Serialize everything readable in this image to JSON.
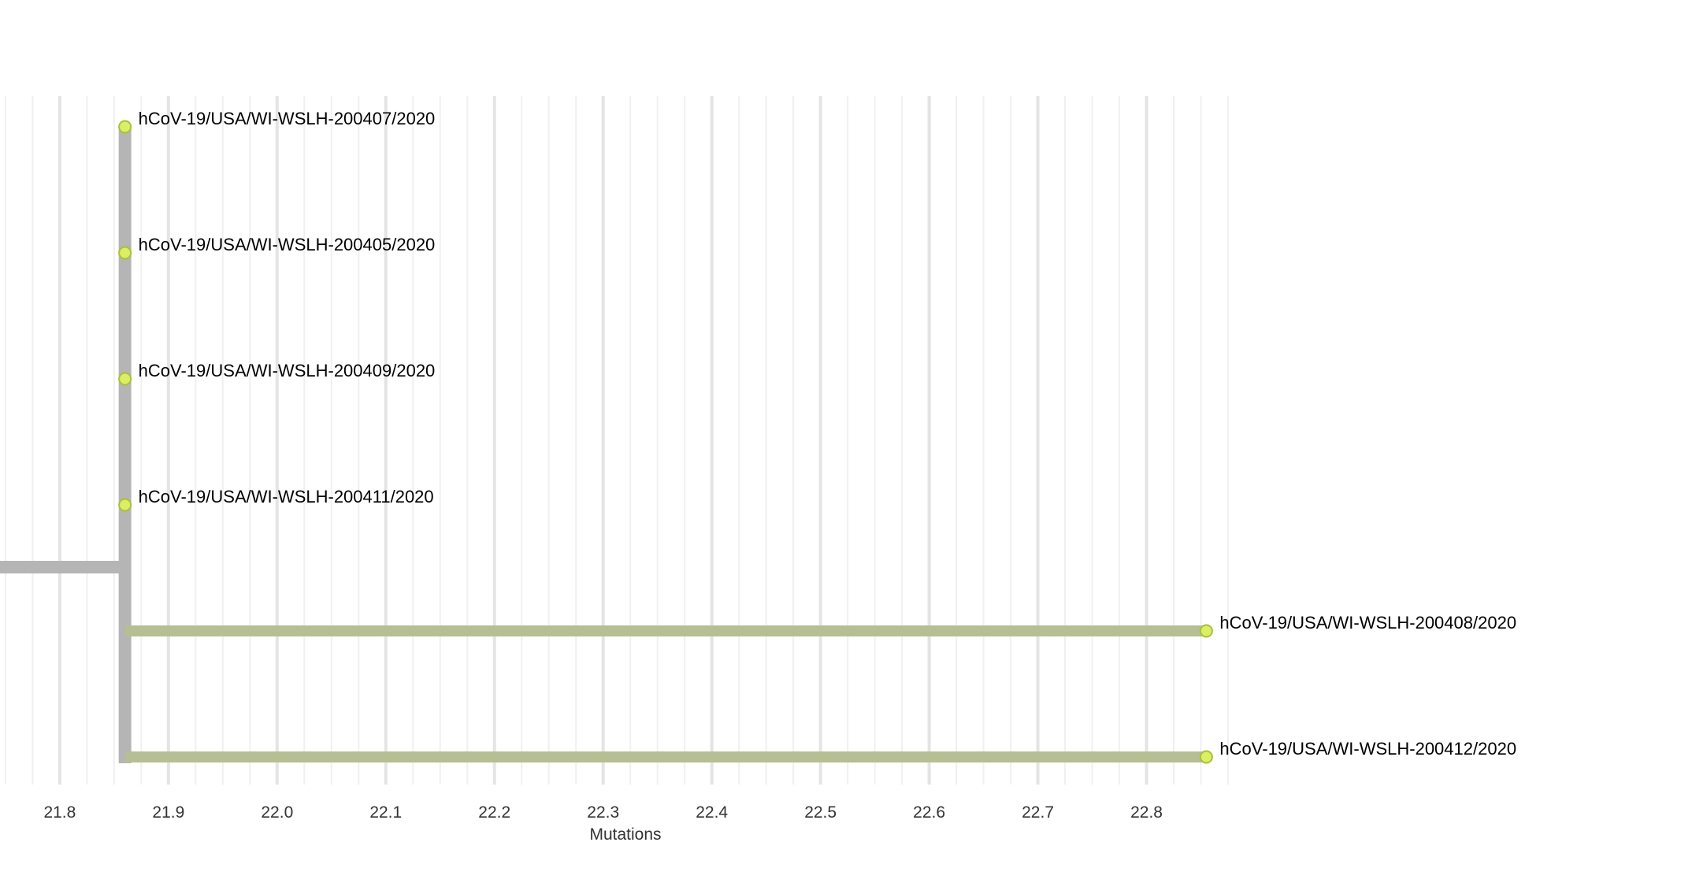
{
  "chart_data": {
    "type": "phylogenetic-tree",
    "xlabel": "Mutations",
    "xlim": [
      21.745,
      22.925
    ],
    "x_ticks": [
      21.8,
      21.9,
      22.0,
      22.1,
      22.2,
      22.3,
      22.4,
      22.5,
      22.6,
      22.7,
      22.8
    ],
    "x_tick_labels": [
      "21.8",
      "21.9",
      "22.0",
      "22.1",
      "22.2",
      "22.3",
      "22.4",
      "22.5",
      "22.6",
      "22.7",
      "22.8"
    ],
    "grid": "vertical",
    "clade_node": {
      "divergence": 21.86
    },
    "tips": [
      {
        "name": "hCoV-19/USA/WI-WSLH-200407/2020",
        "divergence": 21.86,
        "branch_color": "#b5b5b5"
      },
      {
        "name": "hCoV-19/USA/WI-WSLH-200405/2020",
        "divergence": 21.86,
        "branch_color": "#b5b5b5"
      },
      {
        "name": "hCoV-19/USA/WI-WSLH-200409/2020",
        "divergence": 21.86,
        "branch_color": "#b5b5b5"
      },
      {
        "name": "hCoV-19/USA/WI-WSLH-200411/2020",
        "divergence": 21.86,
        "branch_color": "#b5b5b5"
      },
      {
        "name": "hCoV-19/USA/WI-WSLH-200408/2020",
        "divergence": 22.855,
        "branch_color": "#b5bf93"
      },
      {
        "name": "hCoV-19/USA/WI-WSLH-200412/2020",
        "divergence": 22.855,
        "branch_color": "#b5bf93"
      }
    ],
    "colors": {
      "tip_fill": "#dcef64",
      "tip_stroke": "#a8c03a",
      "stem_branch": "#b5b5b5",
      "grid_major": "#e4e4e4",
      "grid_minor": "#f0f0f0"
    }
  }
}
